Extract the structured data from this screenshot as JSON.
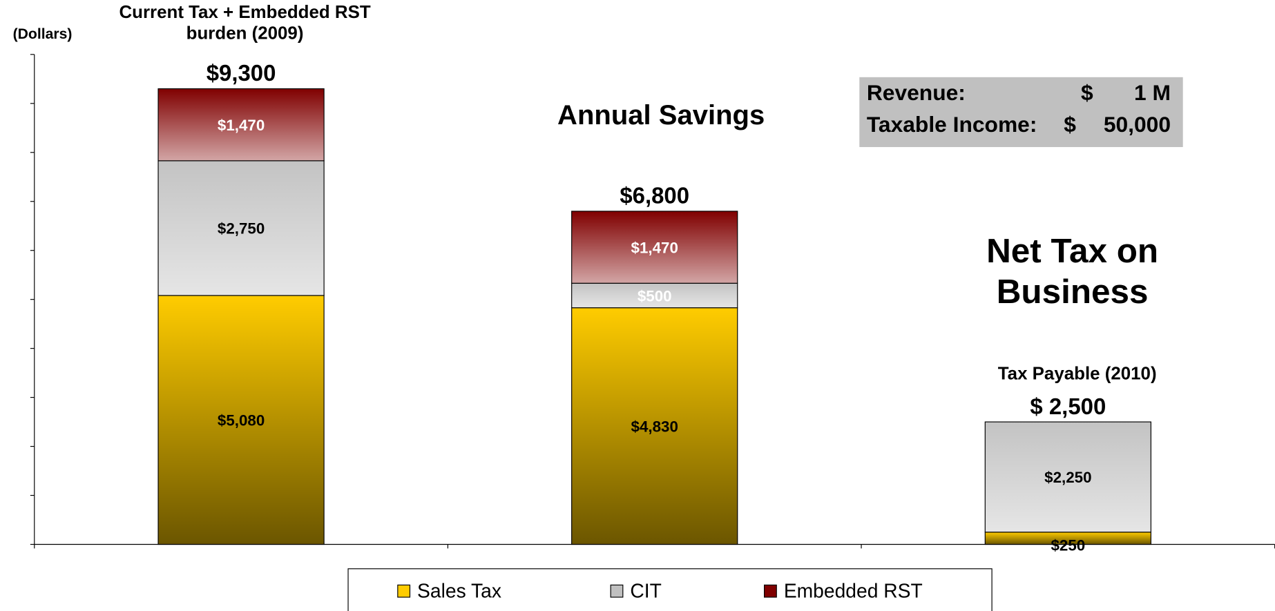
{
  "chart_data": {
    "type": "stacked_bar",
    "y_label": "(Dollars)",
    "categories": [
      "Current Tax + Embedded RST burden (2009)",
      "Annual Savings",
      "Tax Payable (2010)"
    ],
    "series": [
      {
        "name": "Sales Tax",
        "color": "#FFCC00",
        "values": [
          5080,
          4830,
          250
        ],
        "value_labels": [
          "$5,080",
          "$4,830",
          "$250"
        ]
      },
      {
        "name": "CIT",
        "color": "#C0C0C0",
        "values": [
          2750,
          500,
          2250
        ],
        "value_labels": [
          "$2,750",
          "$500",
          "$2,250"
        ]
      },
      {
        "name": "Embedded RST",
        "color": "#800000",
        "values": [
          1470,
          1470,
          null
        ],
        "value_labels": [
          "$1,470",
          "$1,470",
          null
        ]
      }
    ],
    "totals": [
      9300,
      6800,
      2500
    ],
    "total_labels": [
      "$9,300",
      "$6,800",
      "$ 2,500"
    ],
    "ylim": [
      0,
      10000
    ],
    "yticks": [
      0,
      1000,
      2000,
      3000,
      4000,
      5000,
      6000,
      7000,
      8000,
      9000,
      10000
    ],
    "annotations": [
      "Net Tax on Business"
    ],
    "info_box": [
      [
        "Revenue:",
        "$",
        "1 M"
      ],
      [
        "Taxable Income:",
        "$",
        "50,000"
      ]
    ],
    "legend": "bottom"
  }
}
